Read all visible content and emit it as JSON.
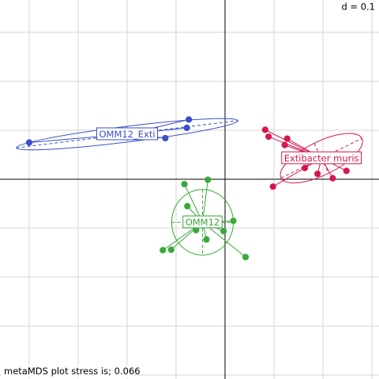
{
  "chart_data": {
    "type": "scatter",
    "subtype": "ade4 s.class ordination (metaMDS)",
    "grid_unit_label": "d = 0.1",
    "caption": "metaMDS plot stress is; 0.066",
    "grid": true,
    "xlim": [
      -0.46,
      0.32
    ],
    "ylim": [
      -0.4,
      0.37
    ],
    "groups": [
      {
        "name": "OMM12_Exti",
        "color": "#3a4fc8",
        "centroid": [
          -0.2,
          0.092
        ],
        "ellipse": {
          "rx": 0.228,
          "ry": 0.016,
          "angle_deg": -7
        },
        "points": [
          [
            -0.4,
            0.075
          ],
          [
            -0.122,
            0.084
          ],
          [
            -0.078,
            0.105
          ],
          [
            -0.074,
            0.122
          ]
        ]
      },
      {
        "name": "Extibacter muris",
        "color": "#d6174a",
        "centroid": [
          0.197,
          0.043
        ],
        "ellipse": {
          "rx": 0.092,
          "ry": 0.034,
          "angle_deg": -26
        },
        "points": [
          [
            0.082,
            0.101
          ],
          [
            0.089,
            0.087
          ],
          [
            0.122,
            0.07
          ],
          [
            0.127,
            0.083
          ],
          [
            0.163,
            0.023
          ],
          [
            0.189,
            0.011
          ],
          [
            0.22,
            0.002
          ],
          [
            0.248,
            0.017
          ],
          [
            0.098,
            -0.015
          ]
        ]
      },
      {
        "name": "OMM12",
        "color": "#3aa83a",
        "centroid": [
          -0.046,
          -0.088
        ],
        "ellipse": {
          "rx": 0.063,
          "ry": 0.067,
          "angle_deg": 0
        },
        "points": [
          [
            -0.083,
            -0.01
          ],
          [
            -0.035,
            -0.001
          ],
          [
            -0.077,
            -0.055
          ],
          [
            -0.038,
            -0.123
          ],
          [
            -0.003,
            -0.106
          ],
          [
            0.017,
            -0.085
          ],
          [
            0.042,
            -0.159
          ],
          [
            -0.11,
            -0.144
          ],
          [
            -0.127,
            -0.145
          ],
          [
            -0.059,
            -0.104
          ]
        ]
      }
    ]
  }
}
